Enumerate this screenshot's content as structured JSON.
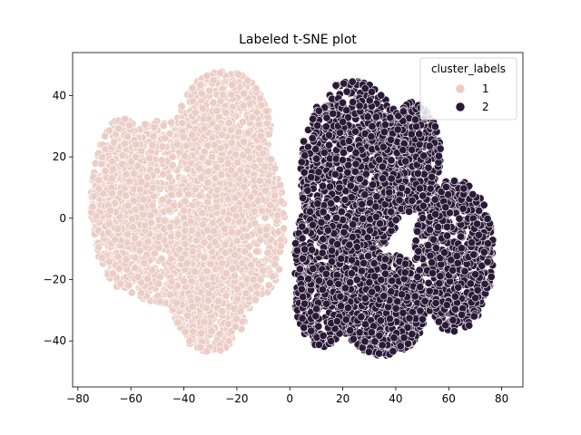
{
  "chart_data": {
    "type": "scatter",
    "title": "Labeled t-SNE plot",
    "xlabel": "",
    "ylabel": "",
    "xlim": [
      -82,
      88
    ],
    "ylim": [
      -55,
      54
    ],
    "xticks": [
      -80,
      -60,
      -40,
      -20,
      0,
      20,
      40,
      60,
      80
    ],
    "yticks": [
      -40,
      -20,
      0,
      20,
      40
    ],
    "grid": false,
    "legend": {
      "title": "cluster_labels",
      "placement": "top-right",
      "entries": [
        {
          "label": "1",
          "color": "#ebcdc6"
        },
        {
          "label": "2",
          "color": "#2a1a37"
        }
      ]
    },
    "series": [
      {
        "name": "1",
        "color": "#ebcdc6",
        "blobs": [
          {
            "cx": -47,
            "cy": 2,
            "rx": 28,
            "ry": 30,
            "n": 1300
          },
          {
            "cx": -25,
            "cy": 28,
            "rx": 18,
            "ry": 20,
            "n": 700
          },
          {
            "cx": -30,
            "cy": -20,
            "rx": 16,
            "ry": 24,
            "n": 700
          },
          {
            "cx": -63,
            "cy": 5,
            "rx": 12,
            "ry": 28,
            "n": 400
          },
          {
            "cx": -15,
            "cy": -2,
            "rx": 14,
            "ry": 26,
            "n": 500
          }
        ]
      },
      {
        "name": "2",
        "color": "#2a1a37",
        "blobs": [
          {
            "cx": 24,
            "cy": 15,
            "rx": 20,
            "ry": 30,
            "n": 1100
          },
          {
            "cx": 35,
            "cy": -28,
            "rx": 17,
            "ry": 17,
            "n": 700
          },
          {
            "cx": 62,
            "cy": -12,
            "rx": 15,
            "ry": 25,
            "n": 700
          },
          {
            "cx": 12,
            "cy": -18,
            "rx": 12,
            "ry": 24,
            "n": 500
          },
          {
            "cx": 45,
            "cy": 20,
            "rx": 12,
            "ry": 18,
            "n": 400
          }
        ]
      }
    ]
  }
}
